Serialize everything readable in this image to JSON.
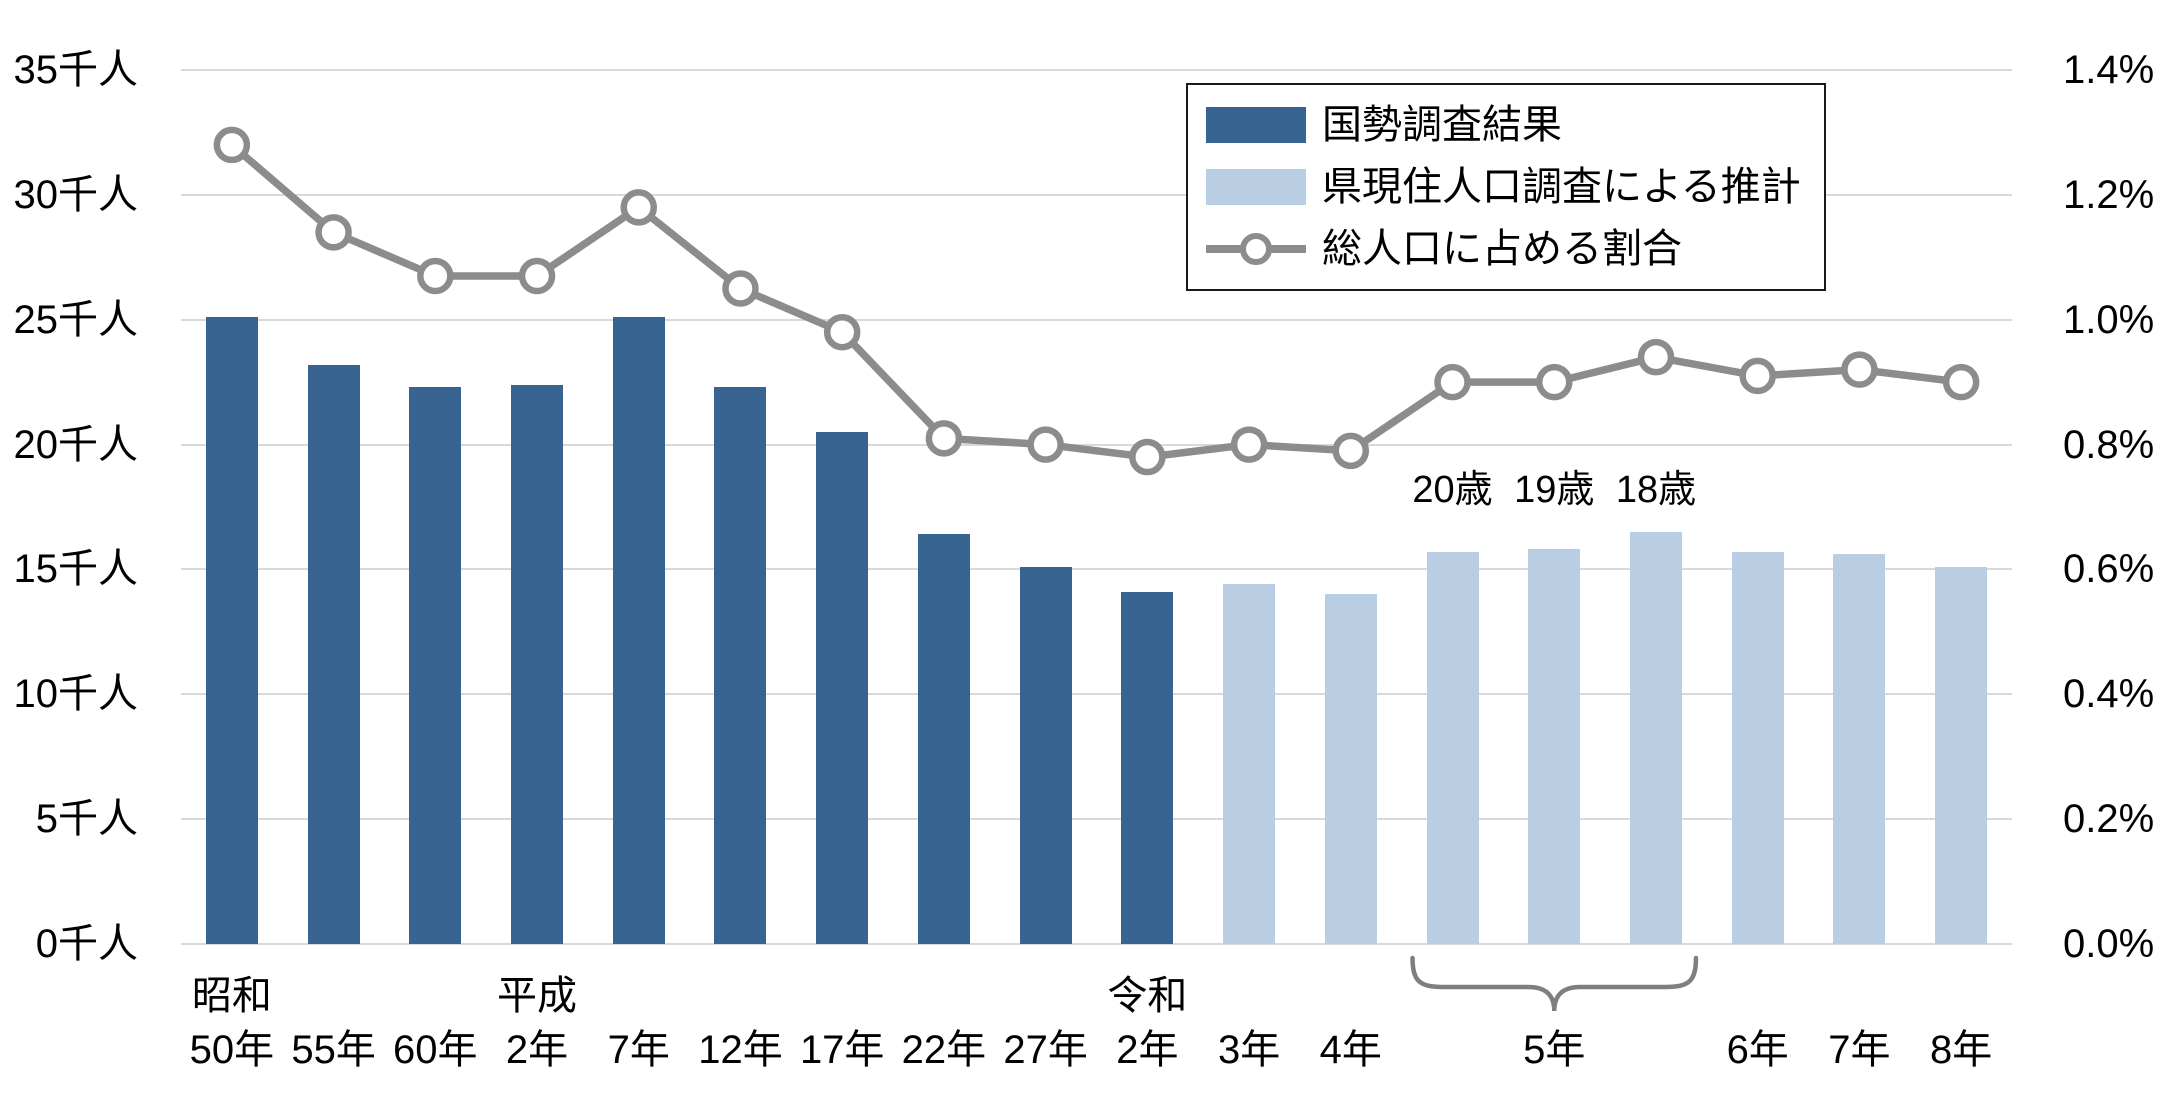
{
  "chart_data": {
    "type": "combo-bar-line",
    "slots": 18,
    "categories": [
      "昭和50年",
      "55年",
      "60年",
      "平成2年",
      "7年",
      "12年",
      "17年",
      "22年",
      "27年",
      "令和2年",
      "3年",
      "4年",
      "5年(20歳)",
      "5年(19歳)",
      "5年(18歳)",
      "6年",
      "7年",
      "8年"
    ],
    "series": [
      {
        "name": "国勢調査結果",
        "type": "bar",
        "color": "#376490",
        "values": [
          25.1,
          23.2,
          22.3,
          22.4,
          25.1,
          22.3,
          20.5,
          16.4,
          15.1,
          14.1,
          null,
          null,
          null,
          null,
          null,
          null,
          null,
          null
        ]
      },
      {
        "name": "県現住人口調査による推計",
        "type": "bar",
        "color": "#b9cde3",
        "values": [
          null,
          null,
          null,
          null,
          null,
          null,
          null,
          null,
          null,
          null,
          14.4,
          14.0,
          15.7,
          15.8,
          16.5,
          15.7,
          15.6,
          15.1
        ]
      },
      {
        "name": "総人口に占める割合",
        "type": "line",
        "color": "#8c8c8c",
        "marker_fill": "#ffffff",
        "values": [
          1.28,
          1.14,
          1.07,
          1.07,
          1.18,
          1.05,
          0.98,
          0.81,
          0.8,
          0.78,
          0.8,
          0.79,
          0.9,
          0.9,
          0.94,
          0.91,
          0.92,
          0.9
        ]
      }
    ],
    "left_axis": {
      "unit": "千人",
      "min": 0,
      "max": 35,
      "step": 5,
      "ticks": [
        "0千人",
        "5千人",
        "10千人",
        "15千人",
        "20千人",
        "25千人",
        "30千人",
        "35千人"
      ]
    },
    "right_axis": {
      "unit": "%",
      "min": 0,
      "max": 1.4,
      "step": 0.2,
      "ticks": [
        "0.0%",
        "0.2%",
        "0.4%",
        "0.6%",
        "0.8%",
        "1.0%",
        "1.2%",
        "1.4%"
      ]
    },
    "x_axis": {
      "era_labels": [
        {
          "text": "昭和",
          "slot": 0
        },
        {
          "text": "平成",
          "slot": 3
        },
        {
          "text": "令和",
          "slot": 9
        }
      ],
      "year_labels": [
        {
          "text": "50年",
          "slot": 0
        },
        {
          "text": "55年",
          "slot": 1
        },
        {
          "text": "60年",
          "slot": 2
        },
        {
          "text": "2年",
          "slot": 3
        },
        {
          "text": "7年",
          "slot": 4
        },
        {
          "text": "12年",
          "slot": 5
        },
        {
          "text": "17年",
          "slot": 6
        },
        {
          "text": "22年",
          "slot": 7
        },
        {
          "text": "27年",
          "slot": 8
        },
        {
          "text": "2年",
          "slot": 9
        },
        {
          "text": "3年",
          "slot": 10
        },
        {
          "text": "4年",
          "slot": 11
        },
        {
          "text": "5年",
          "slot": 13
        },
        {
          "text": "6年",
          "slot": 15
        },
        {
          "text": "7年",
          "slot": 16
        },
        {
          "text": "8年",
          "slot": 17
        }
      ],
      "brace": {
        "from_slot": 12,
        "to_slot": 14,
        "color": "#7f7f7f"
      }
    },
    "annotations": [
      {
        "text": "20歳",
        "slot": 12
      },
      {
        "text": "19歳",
        "slot": 13
      },
      {
        "text": "18歳",
        "slot": 14
      }
    ],
    "grid": {
      "show": true,
      "color": "#d9d9d9"
    },
    "legend_position": "top-right"
  }
}
